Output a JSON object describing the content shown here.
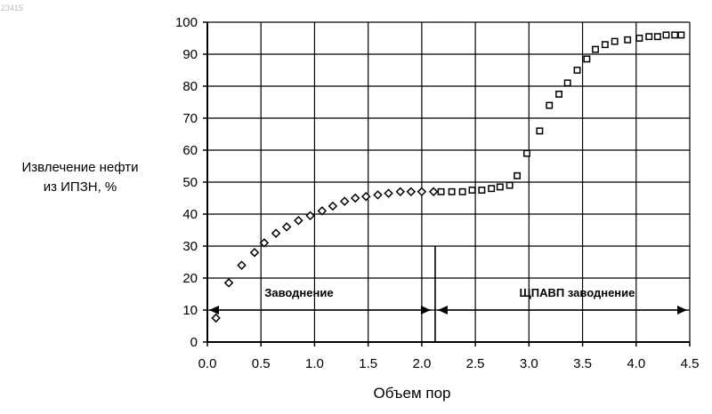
{
  "stamp": "23415",
  "chart_data": {
    "type": "scatter",
    "title": "",
    "xlabel": "Объем пор",
    "ylabel": [
      "Извлечение нефти",
      "из ИПЗН, %"
    ],
    "xlim": [
      0.0,
      4.5
    ],
    "ylim": [
      0,
      100
    ],
    "x_ticks": [
      "0.0",
      "0.5",
      "1.0",
      "1.5",
      "2.0",
      "2.5",
      "3.0",
      "3.5",
      "4.0",
      "4.5"
    ],
    "y_ticks": [
      "0",
      "10",
      "20",
      "30",
      "40",
      "50",
      "60",
      "70",
      "80",
      "90",
      "100"
    ],
    "grid": true,
    "series": [
      {
        "marker": "diamond",
        "x": [
          0.08,
          0.2,
          0.32,
          0.44,
          0.53,
          0.64,
          0.74,
          0.85,
          0.96,
          1.07,
          1.17,
          1.28,
          1.38,
          1.48,
          1.59,
          1.69,
          1.8,
          1.9,
          2.0,
          2.11
        ],
        "y": [
          7.5,
          18.5,
          24,
          28,
          31,
          34,
          36,
          38,
          39.5,
          41,
          42.5,
          44,
          45,
          45.5,
          46,
          46.5,
          47,
          47,
          47,
          47
        ]
      },
      {
        "marker": "square",
        "x": [
          2.18,
          2.28,
          2.38,
          2.47,
          2.56,
          2.65,
          2.73,
          2.82,
          2.89,
          2.98,
          3.1,
          3.19,
          3.28,
          3.36,
          3.45,
          3.54,
          3.62,
          3.71,
          3.8,
          3.92,
          4.03,
          4.12,
          4.2,
          4.28,
          4.36,
          4.42
        ],
        "y": [
          47,
          47,
          47,
          47.5,
          47.5,
          48,
          48.5,
          49,
          52,
          59,
          66,
          74,
          77.5,
          81,
          85,
          88.5,
          91.5,
          93,
          94,
          94.5,
          95,
          95.5,
          95.5,
          96,
          96,
          96
        ]
      }
    ],
    "annotations": [
      {
        "text": "Заводнение",
        "x_from": 0.0,
        "x_to": 2.1,
        "y": 10,
        "label_y": 15.5
      },
      {
        "text": "ЩПАВП заводнение",
        "x_from": 2.1,
        "x_to": 4.5,
        "y": 10,
        "label_y": 15.5
      }
    ],
    "divider": {
      "x": 2.1,
      "y_from": 0,
      "y_to": 30
    }
  }
}
